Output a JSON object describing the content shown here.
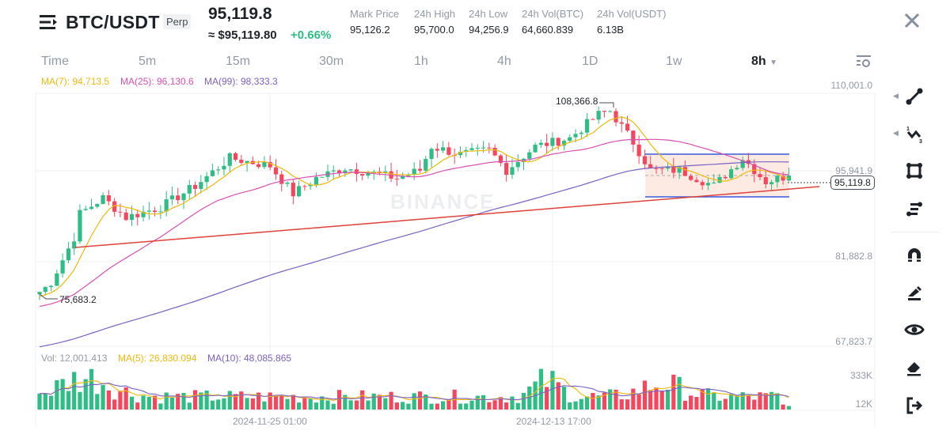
{
  "header": {
    "symbol": "BTC/USDT",
    "contract_badge": "Perp",
    "last_price": "95,119.8",
    "approx_usd": "≈ $95,119.80",
    "change_pct": "+0.66%",
    "stats": [
      {
        "label": "Mark Price",
        "value": "95,126.2"
      },
      {
        "label": "24h High",
        "value": "95,700.0"
      },
      {
        "label": "24h Low",
        "value": "94,256.9"
      },
      {
        "label": "24h Vol(BTC)",
        "value": "64,660.839"
      },
      {
        "label": "24h Vol(USDT)",
        "value": "6.13B"
      }
    ]
  },
  "timeframes": [
    "Time",
    "5m",
    "15m",
    "30m",
    "1h",
    "4h",
    "1D",
    "1w",
    "8h"
  ],
  "selected_timeframe": "8h",
  "indicators": {
    "ma7": "MA(7): 94,713.5",
    "ma25": "MA(25): 96,130.6",
    "ma99": "MA(99): 98,333.3"
  },
  "volume_legend": {
    "vol": "Vol: 12,001.413",
    "ma5": "MA(5): 26,830.094",
    "ma10": "MA(10): 48,085.865"
  },
  "price_axis": [
    "110,001.0",
    "95,941.9",
    "81,882.8",
    "67,823.7"
  ],
  "volume_axis": [
    "333K",
    "12K"
  ],
  "current_price_tag": "95,119.8",
  "annotations": {
    "high": "108,366.8",
    "low": "75,683.2"
  },
  "time_axis": [
    "2024-11-25 01:00",
    "2024-12-13 17:00"
  ],
  "watermark": "BINANCE",
  "colors": {
    "up": "#2ebd85",
    "down": "#f6465d",
    "ma7": "#f0b90b",
    "ma25": "#d94fb3",
    "ma99": "#7b61c4",
    "trend": "#e0413a",
    "channel": "#3b5bdb"
  },
  "chart_data": {
    "type": "candlestick",
    "price_range": [
      67823.7,
      110001.0
    ],
    "close_anchors": [
      [
        0,
        75683
      ],
      [
        2,
        77500
      ],
      [
        6,
        84900
      ],
      [
        7,
        88800
      ],
      [
        11,
        91400
      ],
      [
        15,
        88200
      ],
      [
        21,
        89900
      ],
      [
        27,
        93400
      ],
      [
        33,
        98000
      ],
      [
        40,
        96700
      ],
      [
        44,
        92100
      ],
      [
        48,
        94700
      ],
      [
        53,
        96400
      ],
      [
        62,
        94700
      ],
      [
        66,
        96000
      ],
      [
        68,
        99900
      ],
      [
        73,
        98600
      ],
      [
        78,
        99300
      ],
      [
        81,
        96000
      ],
      [
        86,
        99900
      ],
      [
        92,
        101300
      ],
      [
        97,
        105200
      ],
      [
        99,
        105800
      ],
      [
        103,
        100600
      ],
      [
        106,
        96000
      ],
      [
        111,
        96000
      ],
      [
        117,
        93400
      ],
      [
        122,
        98000
      ],
      [
        126,
        94100
      ],
      [
        130,
        95119
      ]
    ]
  }
}
